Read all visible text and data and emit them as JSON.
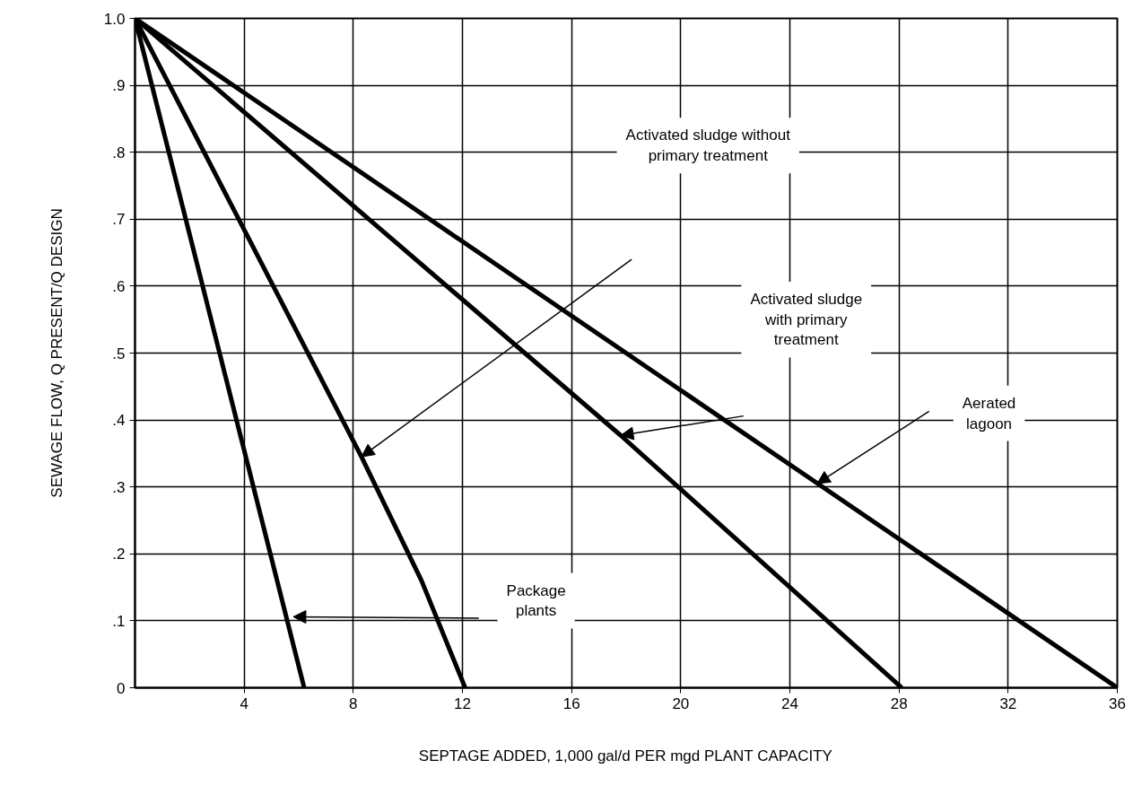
{
  "chart_data": {
    "type": "line",
    "xlabel": "SEPTAGE ADDED, 1,000 gal/d PER mgd PLANT CAPACITY",
    "ylabel": "SEWAGE FLOW, Q PRESENT/Q DESIGN",
    "series": [
      {
        "color": "#000000",
        "x": [
          0,
          6.2
        ],
        "values": [
          1.0,
          0
        ]
      },
      {
        "color": "#000000",
        "x": [
          0,
          8.3,
          10.5,
          12.1
        ],
        "values": [
          1.0,
          0.345,
          0.16,
          0
        ]
      },
      {
        "color": "#000000",
        "x": [
          0,
          17.8,
          28.1
        ],
        "values": [
          1.0,
          0.377,
          0
        ]
      },
      {
        "color": "#000000",
        "x": [
          0,
          36
        ],
        "values": [
          1.0,
          0
        ]
      }
    ],
    "xlim": [
      0,
      36
    ],
    "ylim": [
      0,
      1.0
    ],
    "xticks": [
      4,
      8,
      12,
      16,
      20,
      24,
      28,
      32,
      36
    ],
    "yticks": [
      0,
      {
        "value": 0.1,
        "label": ".1"
      },
      {
        "value": 0.2,
        "label": ".2"
      },
      {
        "value": 0.3,
        "label": ".3"
      },
      {
        "value": 0.4,
        "label": ".4"
      },
      {
        "value": 0.5,
        "label": ".5"
      },
      {
        "value": 0.6,
        "label": ".6"
      },
      {
        "value": 0.7,
        "label": ".7"
      },
      {
        "value": 0.8,
        "label": ".8"
      },
      {
        "value": 0.9,
        "label": ".9"
      },
      {
        "value": 1.0,
        "label": "1.0"
      }
    ],
    "annotations": [
      "Package\nplants",
      "Activated sludge without\nprimary treatment",
      "Activated sludge\nwith primary\ntreatment",
      "Aerated\nlagoon"
    ],
    "grid": true,
    "line_style": "solid",
    "marker": "none"
  }
}
